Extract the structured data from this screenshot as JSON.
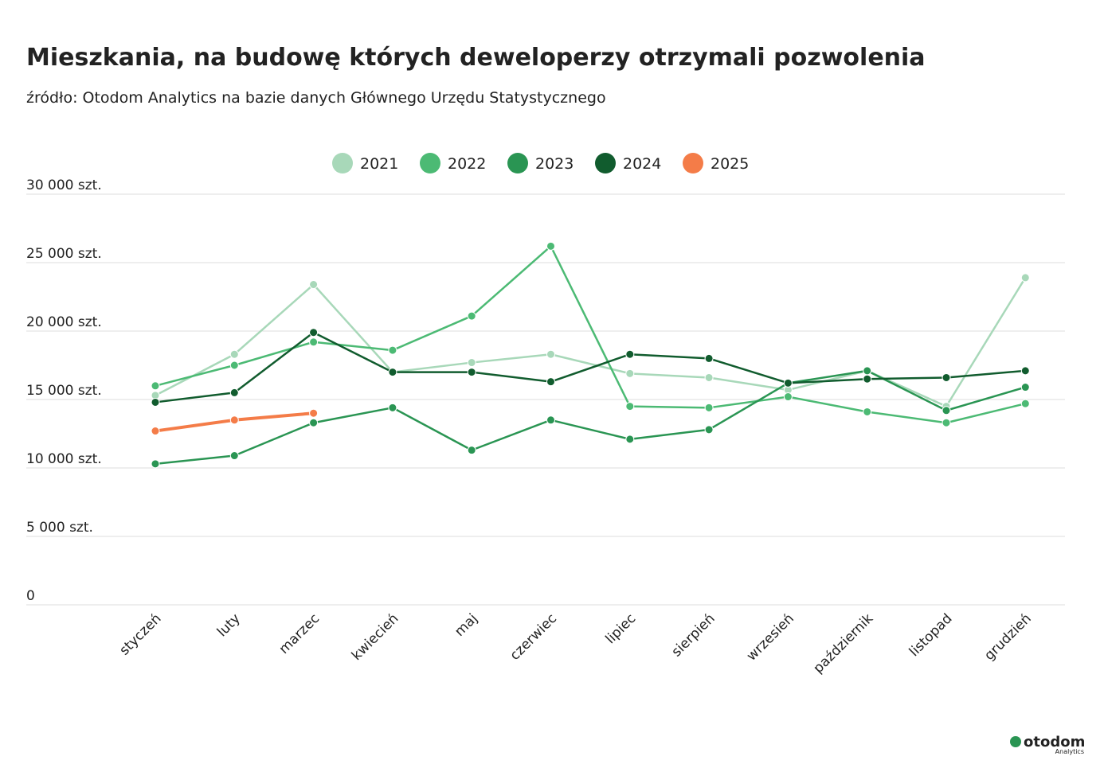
{
  "chart_data": {
    "type": "line",
    "title": "Mieszkania, na budowę których deweloperzy otrzymali pozwolenia",
    "subtitle": "źródło: Otodom Analytics na bazie danych Głównego Urzędu Statystycznego",
    "categories": [
      "styczeń",
      "luty",
      "marzec",
      "kwiecień",
      "maj",
      "czerwiec",
      "lipiec",
      "sierpień",
      "wrzesień",
      "październik",
      "listopad",
      "grudzień"
    ],
    "series": [
      {
        "name": "2021",
        "color": "#a8d8b9",
        "values": [
          15300,
          18300,
          23400,
          17000,
          17700,
          18300,
          16900,
          16600,
          15700,
          17100,
          14500,
          23900
        ]
      },
      {
        "name": "2022",
        "color": "#4cba74",
        "values": [
          16000,
          17500,
          19200,
          18600,
          21100,
          26200,
          14500,
          14400,
          15200,
          14100,
          13300,
          14700
        ]
      },
      {
        "name": "2023",
        "color": "#2a9553",
        "values": [
          10300,
          10900,
          13300,
          14400,
          11300,
          13500,
          12100,
          12800,
          16200,
          17100,
          14200,
          15900
        ]
      },
      {
        "name": "2024",
        "color": "#115c2e",
        "values": [
          14800,
          15500,
          19900,
          17000,
          17000,
          16300,
          18300,
          18000,
          16200,
          16500,
          16600,
          17100
        ]
      },
      {
        "name": "2025",
        "color": "#f47c48",
        "values": [
          12700,
          13500,
          14000,
          null,
          null,
          null,
          null,
          null,
          null,
          null,
          null,
          null
        ]
      }
    ],
    "ylim": [
      0,
      30000
    ],
    "yticks": [
      0,
      {
        "value": 5000,
        "label": "5 000 szt."
      },
      {
        "value": 10000,
        "label": "10 000 szt."
      },
      {
        "value": 15000,
        "label": "15 000 szt."
      },
      {
        "value": 20000,
        "label": "20 000 szt."
      },
      {
        "value": 25000,
        "label": "25 000 szt."
      },
      {
        "value": 30000,
        "label": "30 000 szt."
      }
    ],
    "grid": true,
    "legend": "top"
  },
  "branding": {
    "name": "otodom",
    "sub": "Analytics"
  }
}
